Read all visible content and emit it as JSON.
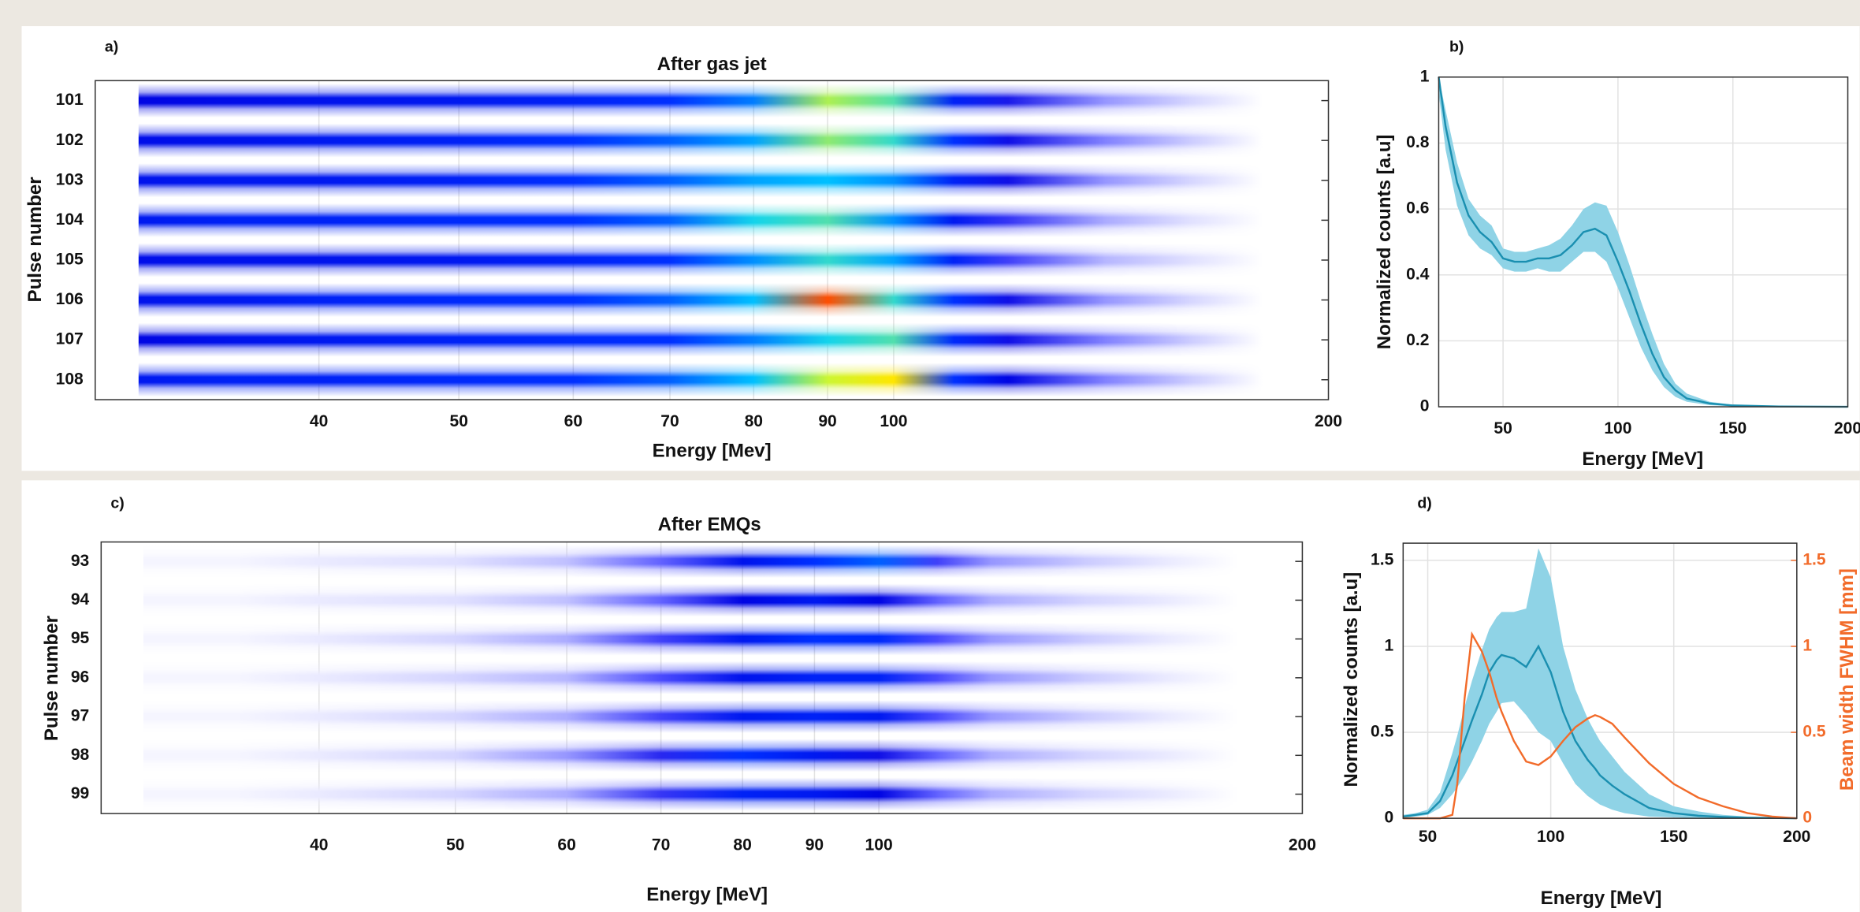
{
  "chart_data": [
    {
      "type": "heatmap",
      "panel_label": "a)",
      "title": "After gas jet",
      "x_label": "Energy [Mev]",
      "y_label": "Pulse number",
      "categories": [
        "101",
        "102",
        "103",
        "104",
        "105",
        "106",
        "107",
        "108"
      ],
      "x": [
        30,
        35,
        40,
        50,
        60,
        70,
        80,
        90,
        100,
        110,
        120,
        140,
        160,
        180
      ],
      "values": [
        [
          0.35,
          0.38,
          0.4,
          0.42,
          0.45,
          0.5,
          0.58,
          0.78,
          0.72,
          0.45,
          0.28,
          0.1,
          0.04,
          0
        ],
        [
          0.38,
          0.4,
          0.42,
          0.45,
          0.5,
          0.55,
          0.62,
          0.76,
          0.7,
          0.5,
          0.3,
          0.12,
          0.05,
          0
        ],
        [
          0.4,
          0.42,
          0.42,
          0.45,
          0.5,
          0.55,
          0.62,
          0.65,
          0.6,
          0.45,
          0.3,
          0.1,
          0.04,
          0
        ],
        [
          0.42,
          0.45,
          0.45,
          0.48,
          0.5,
          0.55,
          0.68,
          0.72,
          0.6,
          0.42,
          0.22,
          0.08,
          0.03,
          0
        ],
        [
          0.38,
          0.4,
          0.4,
          0.42,
          0.45,
          0.5,
          0.6,
          0.7,
          0.62,
          0.45,
          0.2,
          0.07,
          0.03,
          0
        ],
        [
          0.4,
          0.42,
          0.45,
          0.48,
          0.5,
          0.55,
          0.65,
          0.95,
          0.7,
          0.5,
          0.3,
          0.1,
          0.04,
          0
        ],
        [
          0.35,
          0.4,
          0.42,
          0.45,
          0.48,
          0.5,
          0.58,
          0.68,
          0.72,
          0.48,
          0.3,
          0.12,
          0.05,
          0
        ],
        [
          0.42,
          0.45,
          0.45,
          0.48,
          0.5,
          0.55,
          0.65,
          0.8,
          0.85,
          0.5,
          0.35,
          0.12,
          0.05,
          0
        ]
      ],
      "xlim": [
        28,
        200
      ],
      "x_scale": "log",
      "xticks": [
        40,
        50,
        60,
        70,
        80,
        90,
        100,
        200
      ],
      "colormap": [
        "#ffffff",
        "#5050ff",
        "#0000e0",
        "#0030ff",
        "#00d0ff",
        "#ffff00",
        "#ff0000"
      ],
      "grid": true
    },
    {
      "type": "line",
      "panel_label": "b)",
      "x_label": "Energy [MeV]",
      "y_label": "Normalized counts [a.u]",
      "x": [
        22,
        25,
        30,
        35,
        40,
        45,
        50,
        55,
        60,
        65,
        70,
        75,
        80,
        85,
        90,
        95,
        100,
        105,
        110,
        115,
        120,
        125,
        130,
        140,
        150,
        170,
        200
      ],
      "series": [
        {
          "color": "#1a8fb0",
          "band_color": "#8fd3e6",
          "values": [
            1.0,
            0.85,
            0.68,
            0.58,
            0.53,
            0.5,
            0.45,
            0.44,
            0.44,
            0.45,
            0.45,
            0.46,
            0.49,
            0.53,
            0.54,
            0.52,
            0.44,
            0.35,
            0.25,
            0.16,
            0.09,
            0.05,
            0.025,
            0.01,
            0.004,
            0.001,
            0
          ],
          "lower": [
            0.95,
            0.78,
            0.61,
            0.52,
            0.48,
            0.46,
            0.42,
            0.41,
            0.41,
            0.42,
            0.41,
            0.41,
            0.44,
            0.47,
            0.47,
            0.44,
            0.36,
            0.27,
            0.18,
            0.11,
            0.06,
            0.03,
            0.015,
            0.005,
            0.002,
            0,
            0
          ],
          "upper": [
            1.0,
            0.9,
            0.74,
            0.63,
            0.58,
            0.55,
            0.48,
            0.47,
            0.47,
            0.48,
            0.49,
            0.51,
            0.55,
            0.6,
            0.62,
            0.61,
            0.53,
            0.43,
            0.32,
            0.22,
            0.13,
            0.07,
            0.04,
            0.015,
            0.006,
            0.002,
            0
          ]
        }
      ],
      "xlim": [
        22,
        200
      ],
      "xticks": [
        50,
        100,
        150,
        200
      ],
      "ylim": [
        0,
        1
      ],
      "yticks": [
        0,
        0.2,
        0.4,
        0.6,
        0.8,
        1
      ],
      "grid": true
    },
    {
      "type": "heatmap",
      "panel_label": "c)",
      "title": "After EMQs",
      "x_label": "Energy [MeV]",
      "y_label": "Pulse number",
      "categories": [
        "93",
        "94",
        "95",
        "96",
        "97",
        "98",
        "99"
      ],
      "x": [
        30,
        35,
        40,
        50,
        60,
        70,
        80,
        90,
        100,
        110,
        120,
        140,
        160,
        180
      ],
      "values": [
        [
          0.01,
          0.01,
          0.02,
          0.03,
          0.06,
          0.15,
          0.4,
          0.5,
          0.55,
          0.2,
          0.1,
          0.05,
          0.02,
          0
        ],
        [
          0.01,
          0.01,
          0.02,
          0.03,
          0.06,
          0.15,
          0.35,
          0.42,
          0.35,
          0.15,
          0.08,
          0.04,
          0.02,
          0
        ],
        [
          0.01,
          0.01,
          0.02,
          0.04,
          0.08,
          0.2,
          0.42,
          0.5,
          0.48,
          0.18,
          0.1,
          0.05,
          0.02,
          0
        ],
        [
          0.01,
          0.01,
          0.02,
          0.04,
          0.07,
          0.18,
          0.4,
          0.45,
          0.45,
          0.18,
          0.1,
          0.05,
          0.02,
          0
        ],
        [
          0.01,
          0.01,
          0.02,
          0.04,
          0.08,
          0.2,
          0.42,
          0.45,
          0.42,
          0.18,
          0.1,
          0.05,
          0.02,
          0
        ],
        [
          0.01,
          0.01,
          0.02,
          0.04,
          0.1,
          0.25,
          0.5,
          0.42,
          0.3,
          0.15,
          0.08,
          0.04,
          0.02,
          0
        ],
        [
          0.01,
          0.01,
          0.02,
          0.04,
          0.08,
          0.22,
          0.45,
          0.42,
          0.35,
          0.15,
          0.08,
          0.04,
          0.02,
          0
        ]
      ],
      "xlim": [
        28,
        200
      ],
      "x_scale": "log",
      "xticks": [
        40,
        50,
        60,
        70,
        80,
        90,
        100,
        200
      ],
      "colormap": [
        "#ffffff",
        "#5050ff",
        "#0000e0",
        "#0030ff",
        "#00d0ff",
        "#ffff00",
        "#ff0000"
      ],
      "grid": true
    },
    {
      "type": "line",
      "panel_label": "d)",
      "x_label": "Energy [MeV]",
      "y_label": "Normalized counts [a.u]",
      "y2_label": "Beam width FWHM [mm]",
      "x": [
        40,
        45,
        50,
        55,
        60,
        62,
        65,
        68,
        72,
        75,
        78,
        80,
        85,
        90,
        95,
        100,
        105,
        110,
        115,
        118,
        120,
        125,
        130,
        140,
        150,
        160,
        170,
        180,
        190,
        200
      ],
      "series": [
        {
          "color": "#1a8fb0",
          "band_color": "#8fd3e6",
          "values": [
            0.01,
            0.02,
            0.03,
            0.1,
            0.25,
            0.33,
            0.45,
            0.57,
            0.72,
            0.85,
            0.92,
            0.95,
            0.93,
            0.88,
            1.0,
            0.85,
            0.62,
            0.45,
            0.34,
            0.29,
            0.25,
            0.19,
            0.14,
            0.06,
            0.03,
            0.015,
            0.008,
            0.004,
            0.002,
            0
          ],
          "lower": [
            0,
            0.01,
            0.02,
            0.06,
            0.14,
            0.18,
            0.25,
            0.33,
            0.45,
            0.55,
            0.62,
            0.67,
            0.68,
            0.6,
            0.5,
            0.45,
            0.32,
            0.2,
            0.13,
            0.1,
            0.08,
            0.05,
            0.03,
            0.01,
            0.005,
            0,
            0,
            0,
            0,
            0
          ],
          "upper": [
            0.02,
            0.03,
            0.05,
            0.15,
            0.38,
            0.48,
            0.65,
            0.8,
            0.98,
            1.1,
            1.17,
            1.2,
            1.2,
            1.22,
            1.57,
            1.4,
            1.0,
            0.75,
            0.58,
            0.5,
            0.45,
            0.36,
            0.27,
            0.14,
            0.07,
            0.04,
            0.02,
            0.01,
            0.005,
            0
          ]
        },
        {
          "color": "#f26b2a",
          "axis": "y2",
          "values": [
            0,
            0,
            0,
            0,
            0.02,
            0.2,
            0.7,
            1.07,
            0.97,
            0.85,
            0.7,
            0.62,
            0.45,
            0.33,
            0.31,
            0.36,
            0.45,
            0.53,
            0.58,
            0.6,
            0.59,
            0.55,
            0.47,
            0.32,
            0.2,
            0.12,
            0.07,
            0.03,
            0.01,
            0
          ]
        }
      ],
      "xlim": [
        40,
        200
      ],
      "xticks": [
        50,
        100,
        150,
        200
      ],
      "ylim": [
        0,
        1.6
      ],
      "yticks": [
        0,
        0.5,
        1,
        1.5
      ],
      "y2lim": [
        0,
        1.6
      ],
      "y2ticks": [
        0,
        0.5,
        1,
        1.5
      ],
      "grid": true
    }
  ]
}
